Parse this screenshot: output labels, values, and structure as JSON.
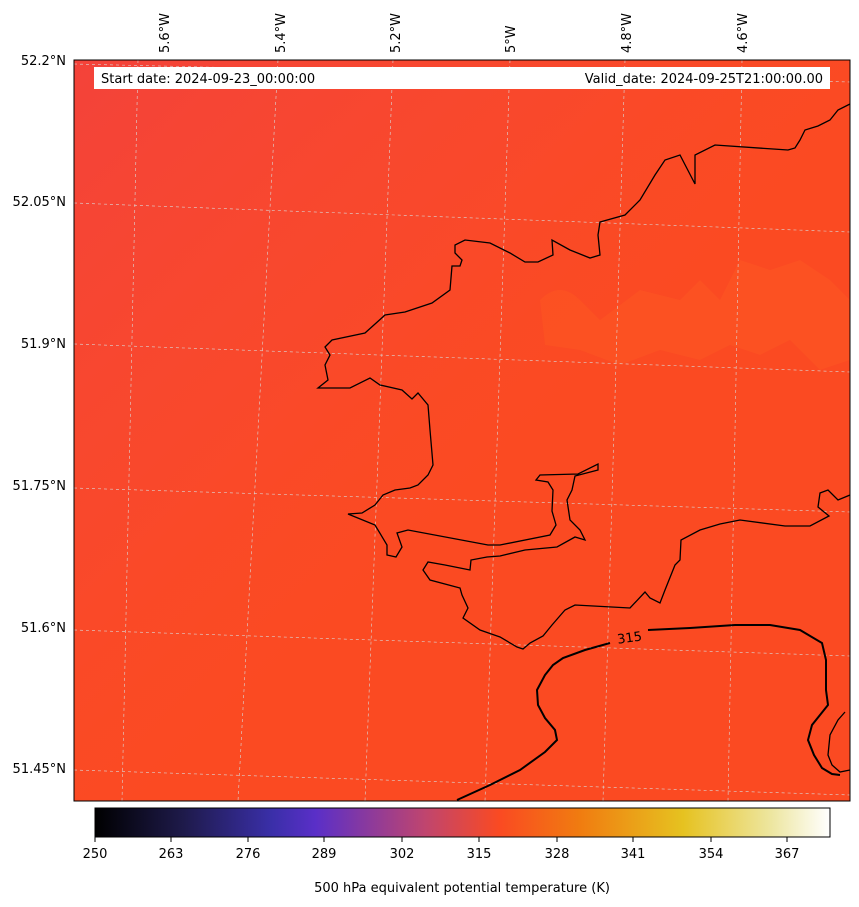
{
  "map": {
    "header": {
      "start_label": "Start date: 2024-09-23_00:00:00",
      "valid_label": "Valid_date: 2024-09-25T21:00:00.00"
    },
    "lon_labels": [
      "5.6°W",
      "5.4°W",
      "5.2°W",
      "5°W",
      "4.8°W",
      "4.6°W"
    ],
    "lat_labels": [
      "52.2°N",
      "52.05°N",
      "51.9°N",
      "51.75°N",
      "51.6°N",
      "51.45°N"
    ],
    "contour": {
      "label": "315",
      "color": "#000000"
    },
    "field_color": "#fb4a22",
    "field_color_northwest": "#f6453a",
    "field_color_patch": "#fc5220",
    "coastline_color": "#000000",
    "gridline_color": "#c8c8c8",
    "gridlines_shown": true
  },
  "colorbar": {
    "ticks": [
      "250",
      "263",
      "276",
      "289",
      "302",
      "315",
      "328",
      "341",
      "354",
      "367"
    ],
    "label": "500 hPa equivalent potential temperature (K)",
    "stops": [
      "#000000",
      "#1e1a4a",
      "#3a2fa8",
      "#5a2fc8",
      "#c0456e",
      "#fa4a22",
      "#f07c10",
      "#e6c220",
      "#ede6a0",
      "#ffffff"
    ]
  }
}
